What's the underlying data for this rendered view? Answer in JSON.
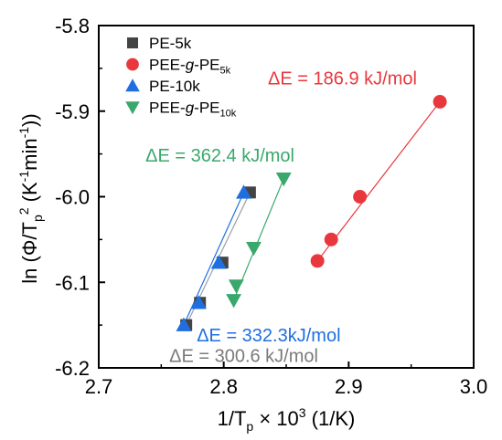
{
  "chart_data": {
    "type": "scatter",
    "xlabel": "1/T",
    "xlabel_sub": "p",
    "xlabel_rest": " × 10",
    "xlabel_sup": "3",
    "xlabel_unit": " (1/K)",
    "ylabel_pre": "ln (Φ/T",
    "ylabel_sub": "p",
    "ylabel_sup": "2",
    "ylabel_mid": " (K",
    "ylabel_sup2": "-1",
    "ylabel_mid2": "min",
    "ylabel_sup3": "-1",
    "ylabel_end": "))",
    "xlim": [
      2.7,
      3.0
    ],
    "ylim": [
      -6.2,
      -5.8
    ],
    "x_ticks": [
      "2.7",
      "2.8",
      "2.9",
      "3.0"
    ],
    "y_ticks": [
      "-6.2",
      "-6.1",
      "-6.0",
      "-5.9",
      "-5.8"
    ],
    "legend_position": "top-left",
    "series": [
      {
        "name": "PE-5k",
        "legend_parts": [
          {
            "t": "PE-5k",
            "s": "normal"
          }
        ],
        "marker": "square",
        "color": "#444444",
        "line_color": "#9aa0b0",
        "points": [
          [
            2.77,
            -6.15
          ],
          [
            2.781,
            -6.124
          ],
          [
            2.799,
            -6.077
          ],
          [
            2.821,
            -5.995
          ]
        ]
      },
      {
        "name": "PEE-g-PE5k",
        "legend_parts": [
          {
            "t": "PEE-",
            "s": "normal"
          },
          {
            "t": "g",
            "s": "italic"
          },
          {
            "t": "-PE",
            "s": "normal"
          },
          {
            "t": "5k",
            "s": "sub"
          }
        ],
        "marker": "circle",
        "color": "#e8383d",
        "line_color": "#e8383d",
        "points": [
          [
            2.875,
            -6.075
          ],
          [
            2.886,
            -6.05
          ],
          [
            2.909,
            -6.0
          ],
          [
            2.973,
            -5.889
          ]
        ]
      },
      {
        "name": "PE-10k",
        "legend_parts": [
          {
            "t": "PE-10k",
            "s": "normal"
          }
        ],
        "marker": "triangle-up",
        "color": "#1f6fe0",
        "line_color": "#1f6fe0",
        "points": [
          [
            2.768,
            -6.15
          ],
          [
            2.78,
            -6.124
          ],
          [
            2.796,
            -6.077
          ],
          [
            2.816,
            -5.995
          ]
        ]
      },
      {
        "name": "PEE-g-PE10k",
        "legend_parts": [
          {
            "t": "PEE-",
            "s": "normal"
          },
          {
            "t": "g",
            "s": "italic"
          },
          {
            "t": "-PE",
            "s": "normal"
          },
          {
            "t": "10k",
            "s": "sub"
          }
        ],
        "marker": "triangle-down",
        "color": "#3aa86b",
        "line_color": "#3aa86b",
        "points": [
          [
            2.808,
            -6.121
          ],
          [
            2.81,
            -6.104
          ],
          [
            2.824,
            -6.06
          ],
          [
            2.848,
            -5.979
          ]
        ]
      }
    ],
    "annotations": [
      {
        "text": "ΔE = 186.9 kJ/mol",
        "color": "#e8383d",
        "x": 2.895,
        "y": -5.869
      },
      {
        "text": "ΔE = 362.4 kJ/mol",
        "color": "#3aa86b",
        "x": 2.797,
        "y": -5.959
      },
      {
        "text": "ΔE = 332.3kJ/mol",
        "color": "#1f6fe0",
        "x": 2.836,
        "y": -6.169
      },
      {
        "text": "ΔE = 300.6 kJ/mol",
        "color": "#7a7a7a",
        "x": 2.816,
        "y": -6.193
      }
    ]
  }
}
